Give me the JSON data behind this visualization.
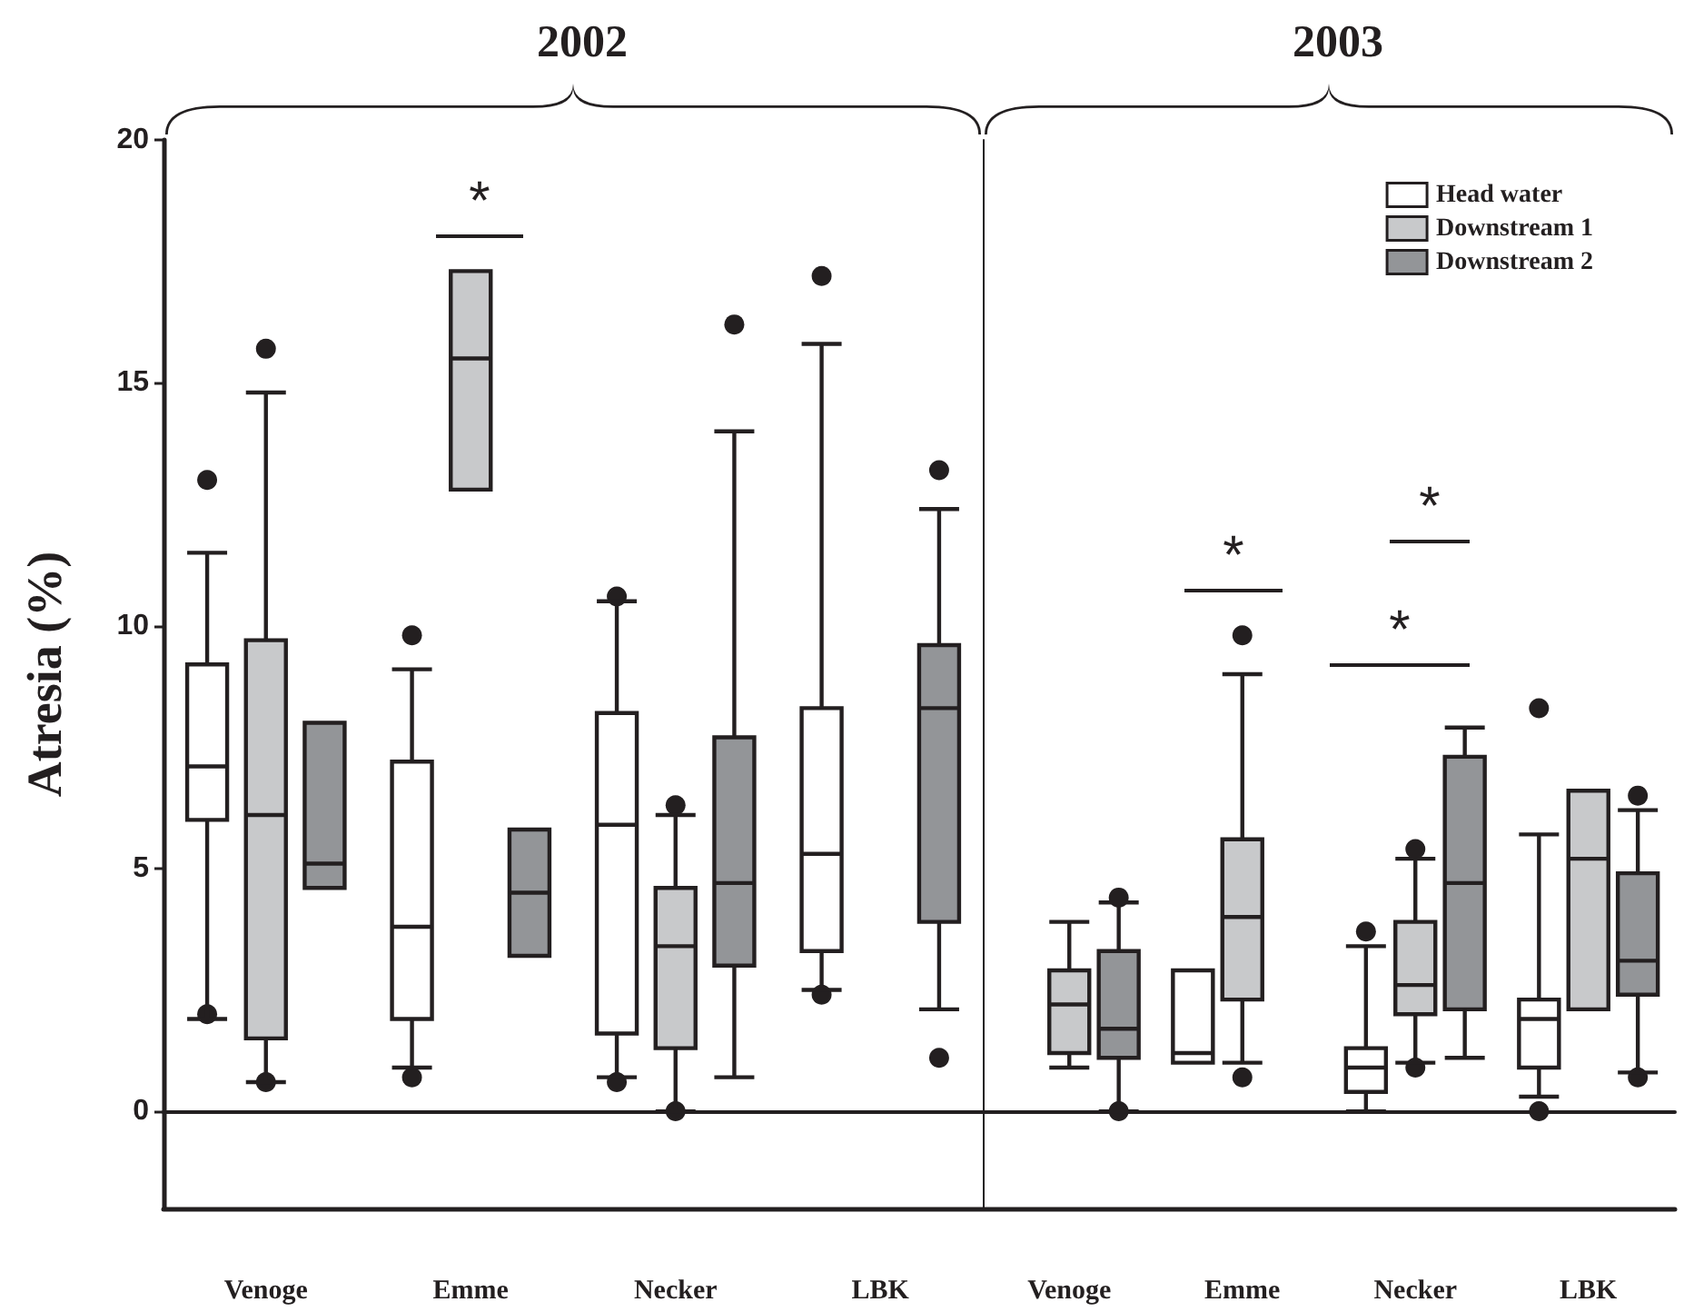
{
  "chart_data": [
    {
      "type": "box",
      "title": "2002",
      "ylabel": "Atresia (%)",
      "categories": [
        "Venoge",
        "Emme",
        "Necker",
        "LBK"
      ],
      "ylim": [
        -2,
        20
      ],
      "yticks": [
        0,
        5,
        10,
        15,
        20
      ],
      "annotations": [
        "*"
      ],
      "series": [
        {
          "color": "#ffffff",
          "boxes": [
            {
              "low": 1.9,
              "q1": 6,
              "median": 7.1,
              "q3": 9.2,
              "high": 11.5,
              "outliers": [
                13,
                2
              ]
            },
            {
              "low": 0.9,
              "q1": 1.9,
              "median": 3.8,
              "q3": 7.2,
              "high": 9.1,
              "outliers": [
                9.8,
                0.7
              ]
            },
            {
              "low": 0.7,
              "q1": 1.6,
              "median": 5.9,
              "q3": 8.2,
              "high": 10.5,
              "outliers": [
                10.6,
                0.6
              ]
            },
            {
              "low": 2.5,
              "q1": 3.3,
              "median": 5.3,
              "q3": 8.3,
              "high": 15.8,
              "outliers": [
                17.2,
                2.4
              ]
            }
          ]
        },
        {
          "color": "#c8c9cb",
          "boxes": [
            {
              "low": 0.6,
              "q1": 1.5,
              "median": 6.1,
              "q3": 9.7,
              "high": 14.8,
              "outliers": [
                15.7,
                0.6
              ]
            },
            {
              "low": 12.8,
              "q1": 12.8,
              "median": 15.5,
              "q3": 17.3,
              "high": 17.3
            },
            {
              "low": 0,
              "q1": 1.3,
              "median": 3.4,
              "q3": 4.6,
              "high": 6.1,
              "outliers": [
                6.3,
                0
              ]
            },
            null
          ]
        },
        {
          "color": "#939598",
          "boxes": [
            {
              "low": 4.6,
              "q1": 4.6,
              "median": 5.1,
              "q3": 8,
              "high": 8
            },
            {
              "low": 3.2,
              "q1": 3.2,
              "median": 4.5,
              "q3": 5.8,
              "high": 5.8
            },
            {
              "low": 0.7,
              "q1": 3,
              "median": 4.7,
              "q3": 7.7,
              "high": 14,
              "outliers": [
                16.2
              ]
            },
            {
              "low": 2.1,
              "q1": 3.9,
              "median": 8.3,
              "q3": 9.6,
              "high": 12.4,
              "outliers": [
                13.2,
                1.1
              ]
            }
          ]
        }
      ]
    },
    {
      "type": "box",
      "title": "2003",
      "categories": [
        "Venoge",
        "Emme",
        "Necker",
        "LBK"
      ],
      "ylim": [
        -2,
        20
      ],
      "yticks": [
        0,
        5,
        10,
        15,
        20
      ],
      "tick_labels": "x",
      "legend": "top right",
      "annotations": [
        "*",
        "*",
        "*"
      ],
      "series": [
        {
          "name": "Head water",
          "color": "#ffffff",
          "boxes": [
            null,
            {
              "low": 1,
              "q1": 1,
              "median": 1.2,
              "q3": 2.9,
              "high": 2.9
            },
            {
              "low": 0,
              "q1": 0.4,
              "median": 0.9,
              "q3": 1.3,
              "high": 3.4,
              "outliers": [
                3.7
              ]
            },
            {
              "low": 0.3,
              "q1": 0.9,
              "median": 1.9,
              "q3": 2.3,
              "high": 5.7,
              "outliers": [
                8.3,
                0
              ]
            }
          ]
        },
        {
          "name": "Downstream 1",
          "color": "#c8c9cb",
          "boxes": [
            {
              "low": 0.9,
              "q1": 1.2,
              "median": 2.2,
              "q3": 2.9,
              "high": 3.9
            },
            {
              "low": 1,
              "q1": 2.3,
              "median": 4,
              "q3": 5.6,
              "high": 9,
              "outliers": [
                9.8,
                0.7
              ]
            },
            {
              "low": 1,
              "q1": 2,
              "median": 2.6,
              "q3": 3.9,
              "high": 5.2,
              "outliers": [
                5.4,
                0.9
              ]
            },
            {
              "low": 2.1,
              "q1": 2.1,
              "median": 5.2,
              "q3": 6.6,
              "high": 6.6
            }
          ]
        },
        {
          "name": "Downstream 2",
          "color": "#939598",
          "boxes": [
            {
              "low": 0,
              "q1": 1.1,
              "median": 1.7,
              "q3": 3.3,
              "high": 4.3,
              "outliers": [
                4.4,
                0
              ]
            },
            null,
            {
              "low": 1.1,
              "q1": 2.1,
              "median": 4.7,
              "q3": 7.3,
              "high": 7.9
            },
            {
              "low": 0.8,
              "q1": 2.4,
              "median": 3.1,
              "q3": 4.9,
              "high": 6.2,
              "outliers": [
                6.5,
                0.7
              ]
            }
          ]
        }
      ]
    }
  ]
}
